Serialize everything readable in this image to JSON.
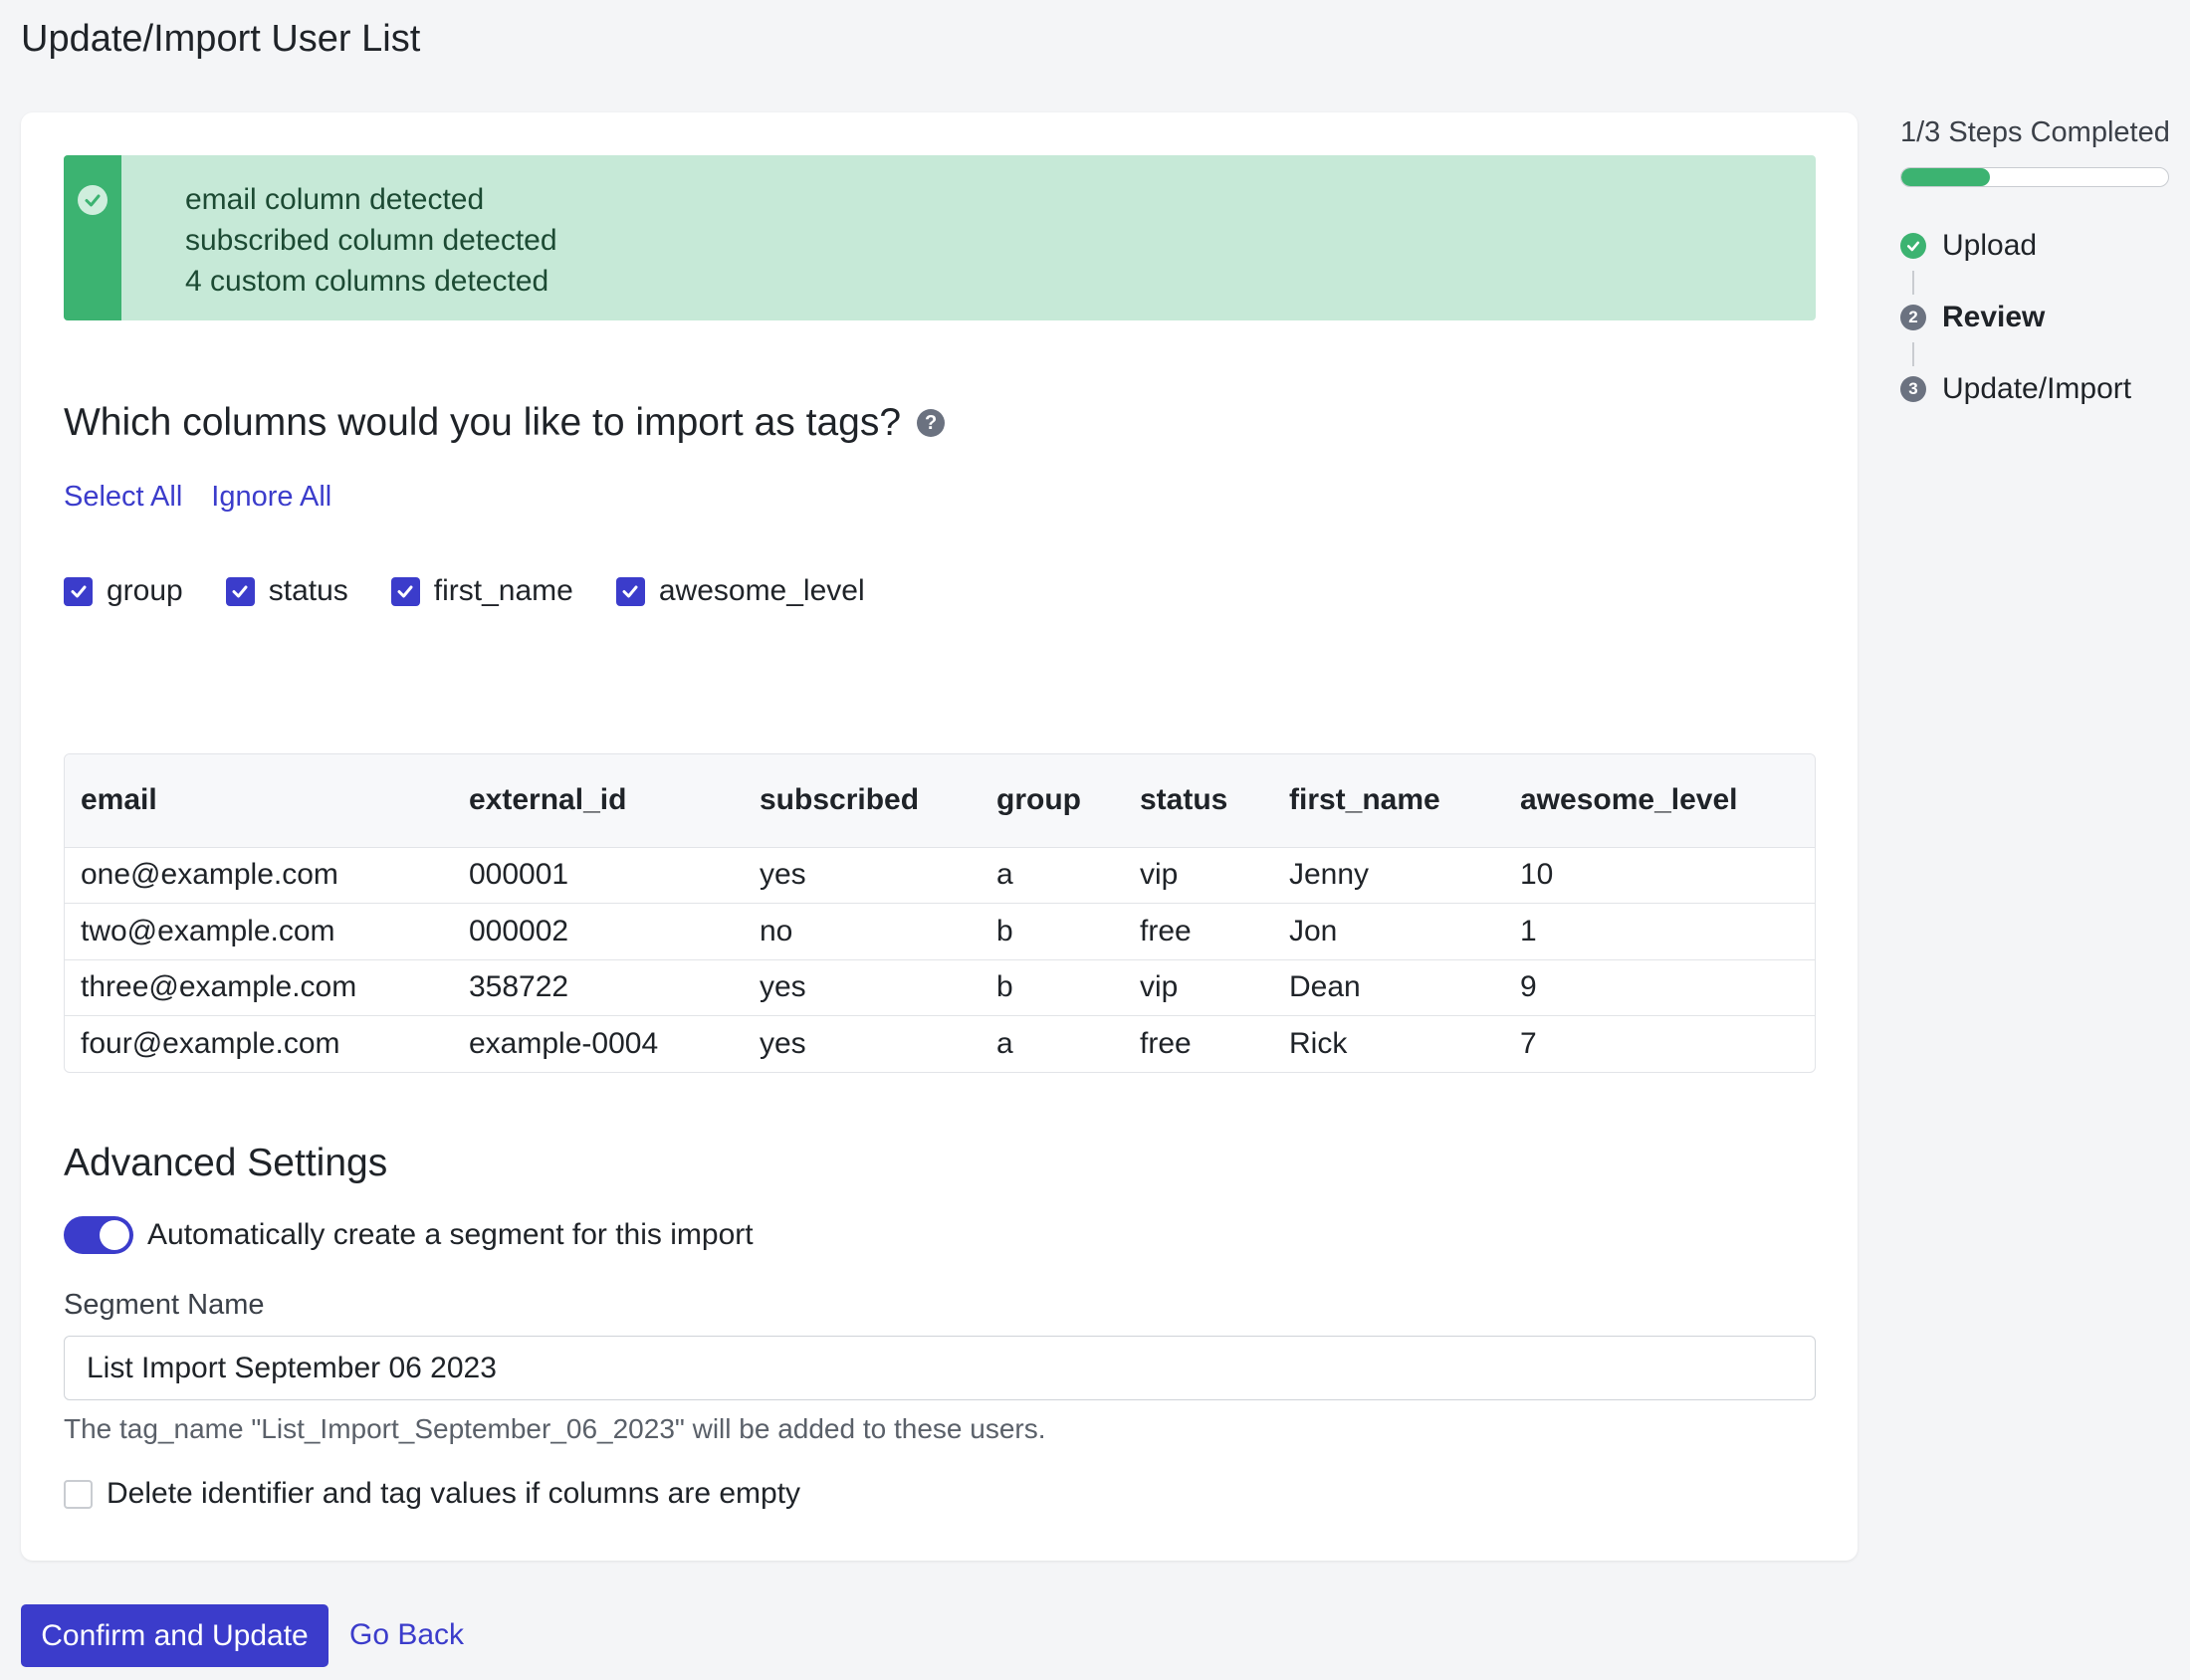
{
  "page": {
    "title": "Update/Import User List"
  },
  "alert": {
    "lines": [
      "email column detected",
      "subscribed column detected",
      "4 custom columns detected"
    ],
    "icon": "check-circle-icon"
  },
  "tags_section": {
    "question": "Which columns would you like to import as tags?",
    "help_icon": "?",
    "select_all": "Select All",
    "ignore_all": "Ignore All",
    "columns": [
      {
        "label": "group",
        "checked": true
      },
      {
        "label": "status",
        "checked": true
      },
      {
        "label": "first_name",
        "checked": true
      },
      {
        "label": "awesome_level",
        "checked": true
      }
    ]
  },
  "table": {
    "headers": [
      "email",
      "external_id",
      "subscribed",
      "group",
      "status",
      "first_name",
      "awesome_level"
    ],
    "rows": [
      [
        "one@example.com",
        "000001",
        "yes",
        "a",
        "vip",
        "Jenny",
        "10"
      ],
      [
        "two@example.com",
        "000002",
        "no",
        "b",
        "free",
        "Jon",
        "1"
      ],
      [
        "three@example.com",
        "358722",
        "yes",
        "b",
        "vip",
        "Dean",
        "9"
      ],
      [
        "four@example.com",
        "example-0004",
        "yes",
        "a",
        "free",
        "Rick",
        "7"
      ]
    ]
  },
  "advanced": {
    "title": "Advanced Settings",
    "auto_segment_label": "Automatically create a segment for this import",
    "auto_segment_on": true,
    "segment_name_label": "Segment Name",
    "segment_name_value": "List Import September 06 2023",
    "tag_help": "The tag_name \"List_Import_September_06_2023\" will be added to these users.",
    "delete_empty_label": "Delete identifier and tag values if columns are empty",
    "delete_empty_checked": false
  },
  "actions": {
    "confirm": "Confirm and Update",
    "go_back": "Go Back"
  },
  "steps": {
    "title": "1/3 Steps Completed",
    "progress_fraction": 0.333,
    "items": [
      {
        "number": "1",
        "label": "Upload",
        "state": "done"
      },
      {
        "number": "2",
        "label": "Review",
        "state": "current"
      },
      {
        "number": "3",
        "label": "Update/Import",
        "state": "pending"
      }
    ]
  },
  "colors": {
    "accent": "#3b3ccb",
    "success": "#3cb371",
    "success_bg": "#c6e9d7",
    "step_pending": "#6b7280"
  }
}
